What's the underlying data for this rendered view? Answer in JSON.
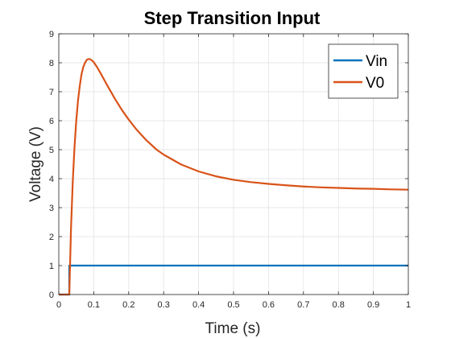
{
  "chart_data": {
    "type": "line",
    "title": "Step Transition Input",
    "xlabel": "Time (s)",
    "ylabel": "Voltage (V)",
    "xlim": [
      0,
      1
    ],
    "ylim": [
      0,
      9
    ],
    "xticks": [
      "0",
      "0.1",
      "0.2",
      "0.3",
      "0.4",
      "0.5",
      "0.6",
      "0.7",
      "0.8",
      "0.9",
      "1"
    ],
    "yticks": [
      "0",
      "1",
      "2",
      "3",
      "4",
      "5",
      "6",
      "7",
      "8",
      "9"
    ],
    "grid": true,
    "legend": "top-right",
    "series": [
      {
        "name": "Vin",
        "color": "#0072BD",
        "x": [
          0,
          0.03,
          0.03,
          1.0
        ],
        "y": [
          0,
          0,
          1,
          1
        ]
      },
      {
        "name": "V0",
        "color": "#D95319",
        "x": [
          0,
          0.03,
          0.035,
          0.04,
          0.045,
          0.05,
          0.055,
          0.06,
          0.065,
          0.07,
          0.075,
          0.08,
          0.085,
          0.09,
          0.095,
          0.1,
          0.11,
          0.12,
          0.13,
          0.14,
          0.15,
          0.16,
          0.18,
          0.2,
          0.22,
          0.25,
          0.28,
          0.3,
          0.35,
          0.4,
          0.45,
          0.5,
          0.55,
          0.6,
          0.65,
          0.7,
          0.75,
          0.8,
          0.85,
          0.9,
          0.95,
          1.0
        ],
        "y": [
          0,
          0,
          2.3,
          3.9,
          5.1,
          6.0,
          6.7,
          7.2,
          7.6,
          7.85,
          8.0,
          8.1,
          8.13,
          8.12,
          8.08,
          8.02,
          7.84,
          7.63,
          7.41,
          7.19,
          6.98,
          6.77,
          6.38,
          6.04,
          5.73,
          5.33,
          5.0,
          4.83,
          4.49,
          4.25,
          4.08,
          3.96,
          3.88,
          3.82,
          3.77,
          3.73,
          3.7,
          3.68,
          3.66,
          3.65,
          3.63,
          3.62
        ]
      }
    ]
  }
}
